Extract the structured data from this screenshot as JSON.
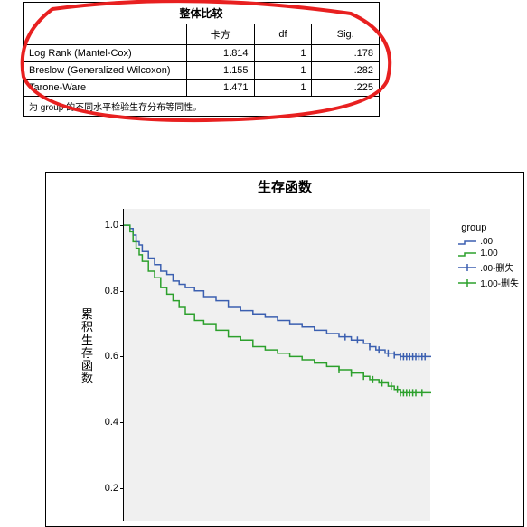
{
  "table": {
    "title": "整体比较",
    "headers": [
      "",
      "卡方",
      "df",
      "Sig."
    ],
    "rows": [
      {
        "label": "Log Rank (Mantel-Cox)",
        "chisq": "1.814",
        "df": "1",
        "sig": ".178"
      },
      {
        "label": "Breslow (Generalized Wilcoxon)",
        "chisq": "1.155",
        "df": "1",
        "sig": ".282"
      },
      {
        "label": "Tarone-Ware",
        "chisq": "1.471",
        "df": "1",
        "sig": ".225"
      }
    ],
    "footnote": "为 group 的不同水平检验生存分布等同性。"
  },
  "annotation": {
    "circle_color": "#e82020",
    "circle_stroke_width": 4
  },
  "chart": {
    "title": "生存函数",
    "ylabel": "累积生存函数",
    "ylim": [
      0.1,
      1.05
    ],
    "yticks": [
      0.2,
      0.4,
      0.6,
      0.8,
      1.0
    ],
    "ytick_labels": [
      "0.2",
      "0.4",
      "0.6",
      "0.8",
      "1.0"
    ],
    "xlim": [
      0,
      1.0
    ],
    "background_color": "#f0f0f0",
    "legend": {
      "title": "group",
      "items": [
        {
          "label": ".00",
          "color": "#3b5fb0",
          "style": "step"
        },
        {
          "label": "1.00",
          "color": "#2ca02c",
          "style": "step"
        },
        {
          "label": ".00-删失",
          "color": "#3b5fb0",
          "style": "cross"
        },
        {
          "label": "1.00-删失",
          "color": "#2ca02c",
          "style": "cross"
        }
      ]
    },
    "series": [
      {
        "name": "group_00",
        "color": "#3b5fb0",
        "line_width": 1.5,
        "points": [
          [
            0.0,
            1.0
          ],
          [
            0.02,
            0.99
          ],
          [
            0.03,
            0.97
          ],
          [
            0.04,
            0.95
          ],
          [
            0.05,
            0.94
          ],
          [
            0.06,
            0.92
          ],
          [
            0.08,
            0.9
          ],
          [
            0.1,
            0.88
          ],
          [
            0.12,
            0.86
          ],
          [
            0.14,
            0.85
          ],
          [
            0.16,
            0.83
          ],
          [
            0.18,
            0.82
          ],
          [
            0.2,
            0.81
          ],
          [
            0.23,
            0.8
          ],
          [
            0.26,
            0.78
          ],
          [
            0.3,
            0.77
          ],
          [
            0.34,
            0.75
          ],
          [
            0.38,
            0.74
          ],
          [
            0.42,
            0.73
          ],
          [
            0.46,
            0.72
          ],
          [
            0.5,
            0.71
          ],
          [
            0.54,
            0.7
          ],
          [
            0.58,
            0.69
          ],
          [
            0.62,
            0.68
          ],
          [
            0.66,
            0.67
          ],
          [
            0.7,
            0.66
          ],
          [
            0.74,
            0.65
          ],
          [
            0.78,
            0.64
          ],
          [
            0.8,
            0.63
          ],
          [
            0.82,
            0.62
          ],
          [
            0.85,
            0.61
          ],
          [
            0.88,
            0.605
          ],
          [
            0.9,
            0.6
          ],
          [
            0.93,
            0.6
          ],
          [
            0.96,
            0.6
          ],
          [
            1.0,
            0.6
          ]
        ],
        "censored_x": [
          0.72,
          0.76,
          0.8,
          0.83,
          0.86,
          0.88,
          0.9,
          0.91,
          0.92,
          0.93,
          0.94,
          0.95,
          0.96,
          0.97,
          0.98
        ]
      },
      {
        "name": "group_100",
        "color": "#2ca02c",
        "line_width": 1.5,
        "points": [
          [
            0.0,
            1.0
          ],
          [
            0.02,
            0.98
          ],
          [
            0.03,
            0.95
          ],
          [
            0.04,
            0.93
          ],
          [
            0.05,
            0.91
          ],
          [
            0.06,
            0.89
          ],
          [
            0.08,
            0.86
          ],
          [
            0.1,
            0.84
          ],
          [
            0.12,
            0.81
          ],
          [
            0.14,
            0.79
          ],
          [
            0.16,
            0.77
          ],
          [
            0.18,
            0.75
          ],
          [
            0.2,
            0.73
          ],
          [
            0.23,
            0.71
          ],
          [
            0.26,
            0.7
          ],
          [
            0.3,
            0.68
          ],
          [
            0.34,
            0.66
          ],
          [
            0.38,
            0.65
          ],
          [
            0.42,
            0.63
          ],
          [
            0.46,
            0.62
          ],
          [
            0.5,
            0.61
          ],
          [
            0.54,
            0.6
          ],
          [
            0.58,
            0.59
          ],
          [
            0.62,
            0.58
          ],
          [
            0.66,
            0.57
          ],
          [
            0.7,
            0.56
          ],
          [
            0.74,
            0.55
          ],
          [
            0.78,
            0.54
          ],
          [
            0.8,
            0.53
          ],
          [
            0.83,
            0.52
          ],
          [
            0.86,
            0.51
          ],
          [
            0.88,
            0.5
          ],
          [
            0.9,
            0.49
          ],
          [
            0.93,
            0.49
          ],
          [
            0.96,
            0.49
          ],
          [
            1.0,
            0.49
          ]
        ],
        "censored_x": [
          0.7,
          0.74,
          0.78,
          0.81,
          0.84,
          0.87,
          0.89,
          0.9,
          0.91,
          0.92,
          0.93,
          0.94,
          0.95,
          0.97
        ]
      }
    ]
  }
}
